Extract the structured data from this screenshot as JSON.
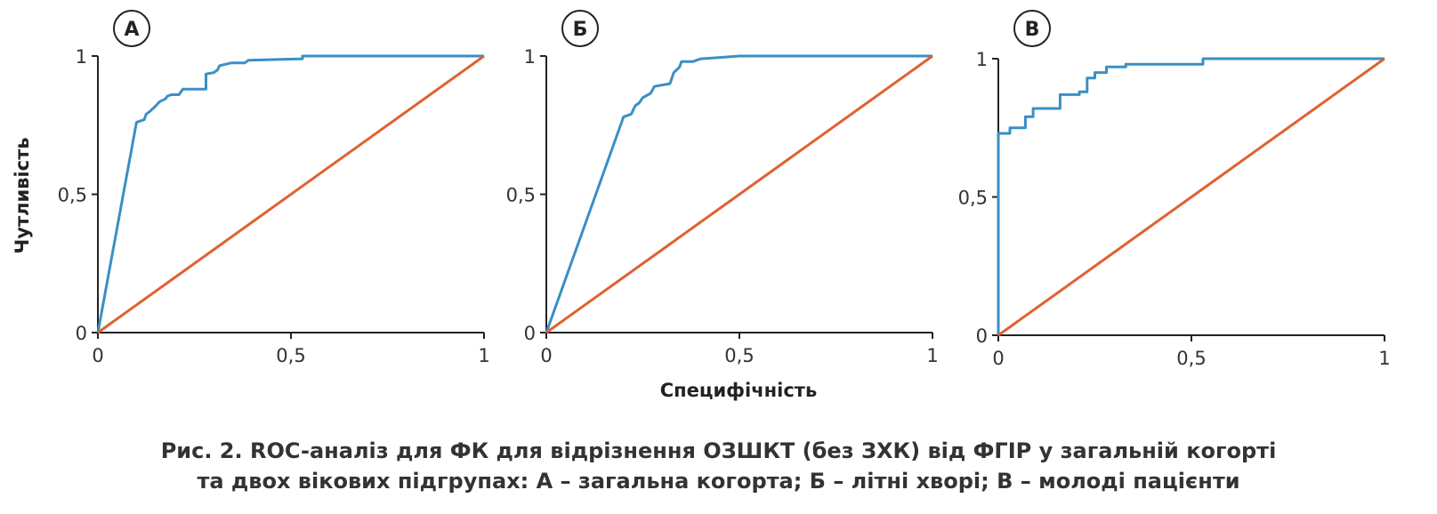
{
  "colors": {
    "roc": "#3a8fc5",
    "diagonal": "#e06031",
    "axis": "#222222"
  },
  "figure": {
    "ylabel": "Чутливість",
    "xlabel": "Специфічність",
    "caption_line1": "Рис. 2. ROC-аналіз для ФК для відрізнення ОЗШКТ (без ЗХК) від ФГІР у загальній когорті",
    "caption_line2": "та двох вікових підгрупах: А – загальна когорта; Б – літні хворі; В – молоді пацієнти"
  },
  "chart_data": [
    {
      "type": "line",
      "panel_label": "А",
      "xlim": [
        0,
        1
      ],
      "ylim": [
        0,
        1
      ],
      "x_ticks": [
        "0",
        "0,5",
        "1"
      ],
      "y_ticks": [
        "0",
        "0,5",
        "1"
      ],
      "series": [
        {
          "role": "roc",
          "x": [
            0,
            0.1,
            0.12,
            0.125,
            0.135,
            0.15,
            0.16,
            0.175,
            0.18,
            0.19,
            0.21,
            0.22,
            0.28,
            0.28,
            0.3,
            0.31,
            0.315,
            0.33,
            0.345,
            0.38,
            0.39,
            0.53,
            0.53,
            1
          ],
          "y": [
            0,
            0.76,
            0.77,
            0.79,
            0.8,
            0.82,
            0.835,
            0.845,
            0.855,
            0.86,
            0.86,
            0.88,
            0.88,
            0.935,
            0.94,
            0.95,
            0.965,
            0.97,
            0.975,
            0.975,
            0.985,
            0.99,
            1,
            1
          ]
        },
        {
          "role": "diagonal",
          "x": [
            0,
            1
          ],
          "y": [
            0,
            1
          ]
        }
      ]
    },
    {
      "type": "line",
      "panel_label": "Б",
      "xlim": [
        0,
        1
      ],
      "ylim": [
        0,
        1
      ],
      "x_ticks": [
        "0",
        "0,5",
        "1"
      ],
      "y_ticks": [
        "0",
        "0,5",
        "1"
      ],
      "series": [
        {
          "role": "roc",
          "x": [
            0,
            0.2,
            0.22,
            0.23,
            0.24,
            0.25,
            0.27,
            0.28,
            0.32,
            0.33,
            0.345,
            0.35,
            0.38,
            0.4,
            0.45,
            0.5,
            0.6,
            1
          ],
          "y": [
            0,
            0.78,
            0.79,
            0.82,
            0.83,
            0.85,
            0.865,
            0.89,
            0.9,
            0.94,
            0.96,
            0.98,
            0.98,
            0.99,
            0.995,
            1,
            1,
            1
          ]
        },
        {
          "role": "diagonal",
          "x": [
            0,
            1
          ],
          "y": [
            0,
            1
          ]
        }
      ]
    },
    {
      "type": "line",
      "panel_label": "В",
      "xlim": [
        0,
        1
      ],
      "ylim": [
        0,
        1
      ],
      "x_ticks": [
        "0",
        "0,5",
        "1"
      ],
      "y_ticks": [
        "0",
        "0,5",
        "1"
      ],
      "series": [
        {
          "role": "roc",
          "x": [
            0,
            0,
            0.03,
            0.03,
            0.07,
            0.07,
            0.09,
            0.09,
            0.16,
            0.16,
            0.21,
            0.21,
            0.23,
            0.23,
            0.25,
            0.25,
            0.28,
            0.28,
            0.33,
            0.33,
            0.53,
            0.53,
            1
          ],
          "y": [
            0,
            0.73,
            0.73,
            0.75,
            0.75,
            0.79,
            0.79,
            0.82,
            0.82,
            0.87,
            0.87,
            0.88,
            0.88,
            0.93,
            0.93,
            0.95,
            0.95,
            0.97,
            0.97,
            0.98,
            0.98,
            1,
            1
          ]
        },
        {
          "role": "diagonal",
          "x": [
            0,
            1
          ],
          "y": [
            0,
            1
          ]
        }
      ]
    }
  ]
}
